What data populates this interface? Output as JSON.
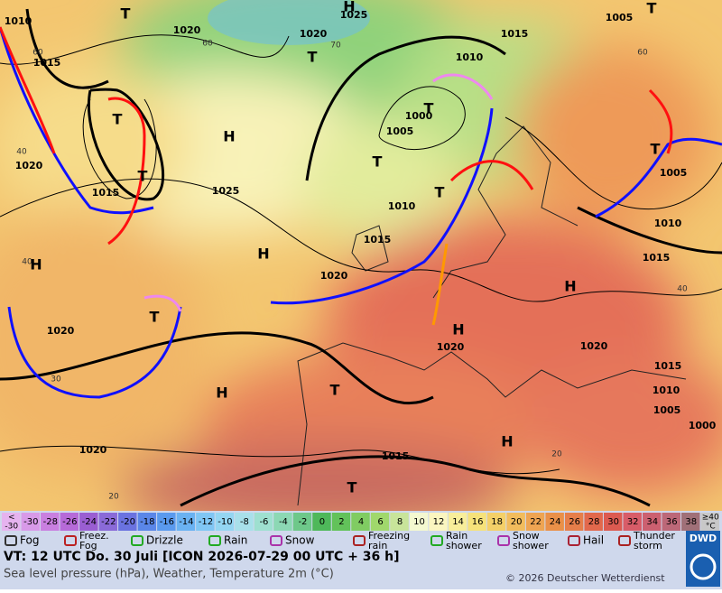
{
  "map": {
    "isobar_labels": [
      "1010",
      "1015",
      "1020",
      "1025",
      "1020",
      "1015",
      "1005",
      "1010",
      "1000",
      "1005",
      "1020",
      "1015",
      "1025",
      "1010",
      "1015",
      "1020",
      "1010",
      "1015",
      "1005",
      "1020",
      "1020",
      "1020",
      "1015",
      "1010",
      "1005",
      "1000",
      "1020",
      "1015"
    ],
    "temperature_labels": [
      "60",
      "70",
      "60",
      "60",
      "40",
      "40",
      "30",
      "40",
      "20",
      "20"
    ],
    "highs": [
      "H",
      "H",
      "H",
      "H",
      "H",
      "H",
      "H",
      "H"
    ],
    "lows": [
      "T",
      "T",
      "T",
      "T",
      "T",
      "T",
      "T",
      "T",
      "T",
      "T",
      "T",
      "T"
    ]
  },
  "temperature_scale": {
    "low_label": [
      "<",
      "-30"
    ],
    "labels": [
      "-30",
      "-28",
      "-26",
      "-24",
      "-22",
      "-20",
      "-18",
      "-16",
      "-14",
      "-12",
      "-10",
      "-8",
      "-6",
      "-4",
      "-2",
      "0",
      "2",
      "4",
      "6",
      "8",
      "10",
      "12",
      "14",
      "16",
      "18",
      "20",
      "22",
      "24",
      "26",
      "28",
      "30",
      "32",
      "34",
      "36",
      "38"
    ],
    "high_label": [
      "≥40",
      "°C"
    ],
    "low_color": "#e6b3ef",
    "colors": [
      "#d89ae8",
      "#c97fe0",
      "#b66ad8",
      "#9a5ed2",
      "#8a6ad8",
      "#6a72e0",
      "#5a86e8",
      "#5a9aee",
      "#6ab2f2",
      "#80c6f4",
      "#94d6f2",
      "#a8e0ea",
      "#9ee0d0",
      "#8cd8b4",
      "#6ec88a",
      "#4eb85a",
      "#62c25a",
      "#80cc62",
      "#a0d86c",
      "#c8e49a",
      "#f4f8d0",
      "#fbf6c0",
      "#f8ee9a",
      "#f6e27a",
      "#f4d068",
      "#f2bc5c",
      "#eea452",
      "#ea9048",
      "#e67e4a",
      "#e2684c",
      "#dc5a50",
      "#d85c68",
      "#cc6070",
      "#bc6878",
      "#a07078"
    ],
    "high_color": "#c8c8c8"
  },
  "weather_legend": [
    [
      "Fog"
    ],
    [
      "Freez.",
      "Fog"
    ],
    [
      "Drizzle"
    ],
    [
      "Rain"
    ],
    [
      "Snow"
    ],
    [
      "Freezing",
      "rain"
    ],
    [
      "Rain",
      "shower"
    ],
    [
      "Snow",
      "shower"
    ],
    [
      "Hail"
    ],
    [
      "Thunder",
      "storm"
    ]
  ],
  "footer": {
    "valid_time": "VT: 12 UTC Do.  30 Juli [ICON 2026-07-29  00 UTC + 36 h]",
    "description": "Sea level pressure (hPa), Weather, Temperature 2m (°C)",
    "copyright": "© 2026 Deutscher Wetterdienst",
    "logo": "DWD"
  }
}
